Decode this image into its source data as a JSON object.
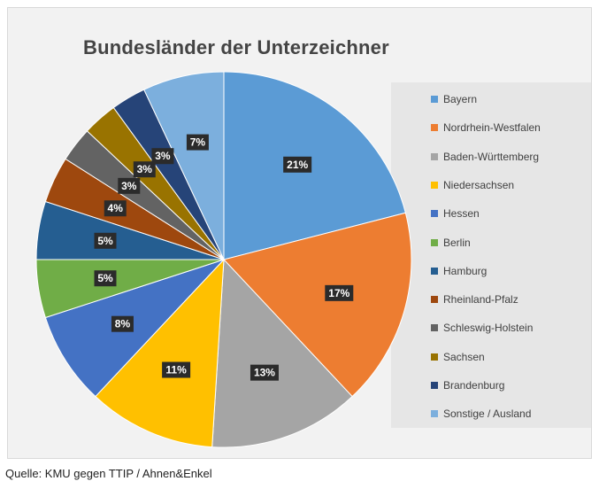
{
  "chart_data": {
    "type": "pie",
    "title": "Bundesländer der Unterzeichner",
    "categories": [
      "Bayern",
      "Nordrhein-Westfalen",
      "Baden-Württemberg",
      "Niedersachsen",
      "Hessen",
      "Berlin",
      "Hamburg",
      "Rheinland-Pfalz",
      "Schleswig-Holstein",
      "Sachsen",
      "Brandenburg",
      "Sonstige / Ausland"
    ],
    "values": [
      21,
      17,
      13,
      11,
      8,
      5,
      5,
      4,
      3,
      3,
      3,
      7
    ],
    "data_labels": [
      "21%",
      "17%",
      "13%",
      "11%",
      "8%",
      "5%",
      "5%",
      "4%",
      "3%",
      "3%",
      "3%",
      "7%"
    ],
    "colors": [
      "#5b9bd5",
      "#ed7d31",
      "#a5a5a5",
      "#ffc000",
      "#4472c4",
      "#70ad47",
      "#255e91",
      "#9e480e",
      "#636363",
      "#997300",
      "#264478",
      "#7cafdd"
    ],
    "legend_position": "right"
  },
  "source_note": "Quelle: KMU gegen TTIP / Ahnen&Enkel"
}
